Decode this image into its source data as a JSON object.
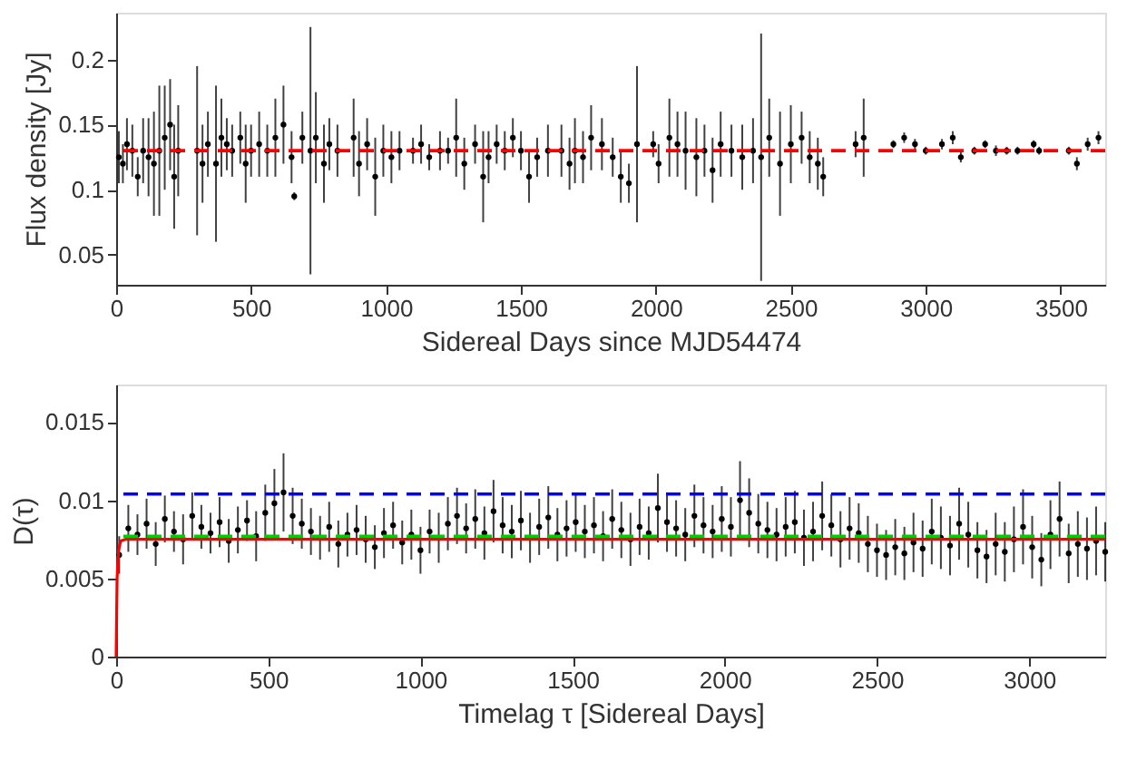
{
  "chart_data": [
    {
      "type": "scatter",
      "xlabel": "Sidereal Days since MJD54474",
      "ylabel": "Flux density [Jy]",
      "xlim": [
        0,
        3665
      ],
      "ylim": [
        0.027,
        0.236
      ],
      "xticks": [
        0,
        500,
        1000,
        1500,
        2000,
        2500,
        3000,
        3500
      ],
      "yticks": [
        0.05,
        0.1,
        0.15,
        0.2
      ],
      "grid": false,
      "series": [
        {
          "color": "#000000",
          "marker": "circle",
          "x": [
            10,
            25,
            40,
            60,
            80,
            100,
            120,
            140,
            160,
            180,
            200,
            215,
            230,
            300,
            320,
            340,
            370,
            390,
            410,
            430,
            460,
            480,
            500,
            530,
            560,
            590,
            620,
            650,
            660,
            690,
            720,
            740,
            770,
            790,
            820,
            880,
            900,
            930,
            960,
            990,
            1020,
            1050,
            1100,
            1130,
            1160,
            1200,
            1230,
            1260,
            1290,
            1330,
            1360,
            1380,
            1410,
            1440,
            1470,
            1500,
            1530,
            1560,
            1600,
            1650,
            1680,
            1700,
            1730,
            1760,
            1800,
            1840,
            1870,
            1900,
            1930,
            1990,
            2010,
            2050,
            2080,
            2110,
            2150,
            2180,
            2210,
            2240,
            2280,
            2320,
            2360,
            2390,
            2420,
            2460,
            2500,
            2540,
            2570,
            2600,
            2620,
            2740,
            2770,
            2880,
            2920,
            2960,
            3000,
            3060,
            3100,
            3130,
            3180,
            3220,
            3260,
            3300,
            3340,
            3400,
            3420,
            3530,
            3560,
            3600,
            3640
          ],
          "values": [
            0.125,
            0.12,
            0.135,
            0.13,
            0.11,
            0.13,
            0.125,
            0.12,
            0.13,
            0.14,
            0.15,
            0.11,
            0.13,
            0.13,
            0.12,
            0.135,
            0.12,
            0.14,
            0.135,
            0.13,
            0.14,
            0.12,
            0.13,
            0.135,
            0.13,
            0.14,
            0.15,
            0.125,
            0.095,
            0.14,
            0.13,
            0.14,
            0.12,
            0.135,
            0.13,
            0.14,
            0.12,
            0.135,
            0.11,
            0.13,
            0.125,
            0.13,
            0.13,
            0.135,
            0.125,
            0.13,
            0.13,
            0.14,
            0.12,
            0.135,
            0.11,
            0.125,
            0.135,
            0.13,
            0.14,
            0.13,
            0.11,
            0.125,
            0.13,
            0.13,
            0.12,
            0.13,
            0.125,
            0.14,
            0.135,
            0.125,
            0.11,
            0.105,
            0.135,
            0.135,
            0.12,
            0.14,
            0.135,
            0.13,
            0.125,
            0.13,
            0.115,
            0.135,
            0.13,
            0.125,
            0.13,
            0.125,
            0.14,
            0.12,
            0.135,
            0.14,
            0.125,
            0.12,
            0.11,
            0.135,
            0.14,
            0.135,
            0.14,
            0.135,
            0.13,
            0.135,
            0.14,
            0.125,
            0.13,
            0.135,
            0.13,
            0.13,
            0.13,
            0.135,
            0.13,
            0.13,
            0.12,
            0.135,
            0.14
          ],
          "errors": [
            0.02,
            0.015,
            0.02,
            0.02,
            0.015,
            0.025,
            0.03,
            0.04,
            0.05,
            0.04,
            0.035,
            0.04,
            0.035,
            0.065,
            0.03,
            0.025,
            0.06,
            0.03,
            0.02,
            0.02,
            0.02,
            0.03,
            0.02,
            0.025,
            0.02,
            0.03,
            0.03,
            0.02,
            0.003,
            0.02,
            0.095,
            0.035,
            0.03,
            0.02,
            0.02,
            0.03,
            0.025,
            0.02,
            0.03,
            0.02,
            0.02,
            0.015,
            0.01,
            0.015,
            0.01,
            0.015,
            0.01,
            0.03,
            0.02,
            0.015,
            0.035,
            0.02,
            0.015,
            0.015,
            0.015,
            0.015,
            0.02,
            0.015,
            0.02,
            0.02,
            0.02,
            0.025,
            0.02,
            0.025,
            0.02,
            0.015,
            0.02,
            0.015,
            0.06,
            0.01,
            0.015,
            0.03,
            0.025,
            0.03,
            0.03,
            0.02,
            0.025,
            0.025,
            0.02,
            0.025,
            0.025,
            0.095,
            0.03,
            0.04,
            0.03,
            0.02,
            0.02,
            0.02,
            0.015,
            0.01,
            0.03,
            0.003,
            0.004,
            0.004,
            0.003,
            0.004,
            0.005,
            0.004,
            0.003,
            0.003,
            0.004,
            0.003,
            0.003,
            0.003,
            0.003,
            0.003,
            0.005,
            0.005,
            0.005
          ]
        }
      ],
      "ref_lines": [
        {
          "axis": "y",
          "value": 0.13,
          "color": "#ff0000",
          "line_style": "dashed"
        }
      ]
    },
    {
      "type": "scatter",
      "xlabel": "Timelag τ [Sidereal Days]",
      "ylabel": "D(τ)",
      "xlim": [
        0,
        3250
      ],
      "ylim": [
        0,
        0.0174
      ],
      "xticks": [
        0,
        500,
        1000,
        1500,
        2000,
        2500,
        3000
      ],
      "yticks": [
        0,
        0.005,
        0.01,
        0.015
      ],
      "grid": false,
      "series": [
        {
          "color": "#000000",
          "marker": "circle",
          "x": [
            10,
            40,
            70,
            100,
            130,
            160,
            190,
            220,
            250,
            280,
            310,
            340,
            370,
            400,
            430,
            460,
            490,
            520,
            550,
            580,
            610,
            640,
            670,
            700,
            730,
            760,
            790,
            820,
            850,
            880,
            910,
            940,
            970,
            1000,
            1030,
            1060,
            1090,
            1120,
            1150,
            1180,
            1210,
            1240,
            1270,
            1300,
            1330,
            1360,
            1390,
            1420,
            1450,
            1480,
            1510,
            1540,
            1570,
            1600,
            1630,
            1660,
            1690,
            1720,
            1750,
            1780,
            1810,
            1840,
            1870,
            1900,
            1930,
            1960,
            1990,
            2020,
            2050,
            2080,
            2110,
            2140,
            2170,
            2200,
            2230,
            2260,
            2290,
            2320,
            2350,
            2380,
            2410,
            2440,
            2470,
            2500,
            2530,
            2560,
            2590,
            2620,
            2650,
            2680,
            2710,
            2740,
            2770,
            2800,
            2830,
            2860,
            2890,
            2920,
            2950,
            2980,
            3010,
            3040,
            3070,
            3100,
            3130,
            3160,
            3190,
            3220,
            3250
          ],
          "values": [
            0.0065,
            0.0082,
            0.0078,
            0.0085,
            0.0072,
            0.0088,
            0.008,
            0.0075,
            0.009,
            0.0083,
            0.0079,
            0.0086,
            0.0074,
            0.0081,
            0.0087,
            0.0077,
            0.0092,
            0.0098,
            0.0105,
            0.009,
            0.0085,
            0.008,
            0.0076,
            0.0083,
            0.0072,
            0.0078,
            0.0081,
            0.0075,
            0.007,
            0.0079,
            0.0084,
            0.0073,
            0.0078,
            0.0068,
            0.008,
            0.0076,
            0.0085,
            0.009,
            0.0082,
            0.0088,
            0.0079,
            0.0093,
            0.0084,
            0.008,
            0.0087,
            0.0076,
            0.0083,
            0.0089,
            0.0078,
            0.0082,
            0.0086,
            0.008,
            0.0084,
            0.0077,
            0.0088,
            0.0081,
            0.0075,
            0.0083,
            0.0079,
            0.0095,
            0.0086,
            0.0082,
            0.0078,
            0.009,
            0.0084,
            0.008,
            0.0088,
            0.0083,
            0.01,
            0.0092,
            0.0085,
            0.0081,
            0.0078,
            0.0083,
            0.0086,
            0.0076,
            0.008,
            0.009,
            0.0084,
            0.0075,
            0.0082,
            0.0079,
            0.0072,
            0.0068,
            0.0065,
            0.007,
            0.0066,
            0.0073,
            0.0069,
            0.008,
            0.0076,
            0.0071,
            0.0085,
            0.0078,
            0.0068,
            0.0064,
            0.0072,
            0.0067,
            0.0075,
            0.0083,
            0.007,
            0.0062,
            0.0078,
            0.0088,
            0.0066,
            0.0072,
            0.0069,
            0.0074,
            0.0067
          ],
          "errors": [
            0.0012,
            0.0015,
            0.0013,
            0.0016,
            0.0014,
            0.0015,
            0.0013,
            0.0016,
            0.0015,
            0.0014,
            0.0013,
            0.0016,
            0.0014,
            0.0015,
            0.0013,
            0.0016,
            0.0018,
            0.0022,
            0.0025,
            0.0018,
            0.0016,
            0.0015,
            0.0014,
            0.0016,
            0.0015,
            0.0014,
            0.0016,
            0.0015,
            0.0014,
            0.0016,
            0.0015,
            0.0014,
            0.0016,
            0.0015,
            0.0014,
            0.0016,
            0.0017,
            0.0018,
            0.0016,
            0.0019,
            0.0017,
            0.002,
            0.0018,
            0.0017,
            0.0019,
            0.0016,
            0.0018,
            0.002,
            0.0017,
            0.0018,
            0.0019,
            0.0017,
            0.0018,
            0.0016,
            0.0019,
            0.0018,
            0.0017,
            0.0018,
            0.0017,
            0.0022,
            0.0019,
            0.0018,
            0.0017,
            0.002,
            0.0018,
            0.0017,
            0.0021,
            0.0019,
            0.0025,
            0.0022,
            0.0019,
            0.0018,
            0.0017,
            0.0019,
            0.002,
            0.0018,
            0.0019,
            0.0022,
            0.002,
            0.0018,
            0.002,
            0.0019,
            0.0018,
            0.0017,
            0.0016,
            0.0018,
            0.0017,
            0.0019,
            0.0018,
            0.0021,
            0.002,
            0.0019,
            0.0023,
            0.0021,
            0.0018,
            0.0017,
            0.002,
            0.0019,
            0.0021,
            0.0024,
            0.002,
            0.0017,
            0.0022,
            0.0024,
            0.0019,
            0.0021,
            0.002,
            0.0022,
            0.0019
          ]
        },
        {
          "type": "line",
          "color": "#ff0000",
          "line_style": "solid",
          "marker": "none",
          "x": [
            0,
            3,
            8,
            15,
            30,
            60,
            3250
          ],
          "values": [
            0,
            0.005,
            0.0068,
            0.0074,
            0.0075,
            0.0075,
            0.0075
          ]
        }
      ],
      "ref_lines": [
        {
          "axis": "y",
          "value": 0.0104,
          "color": "#0000ff",
          "line_style": "dashed"
        },
        {
          "axis": "y",
          "value": 0.0077,
          "color": "#00cc00",
          "line_style": "dashed"
        }
      ]
    }
  ]
}
